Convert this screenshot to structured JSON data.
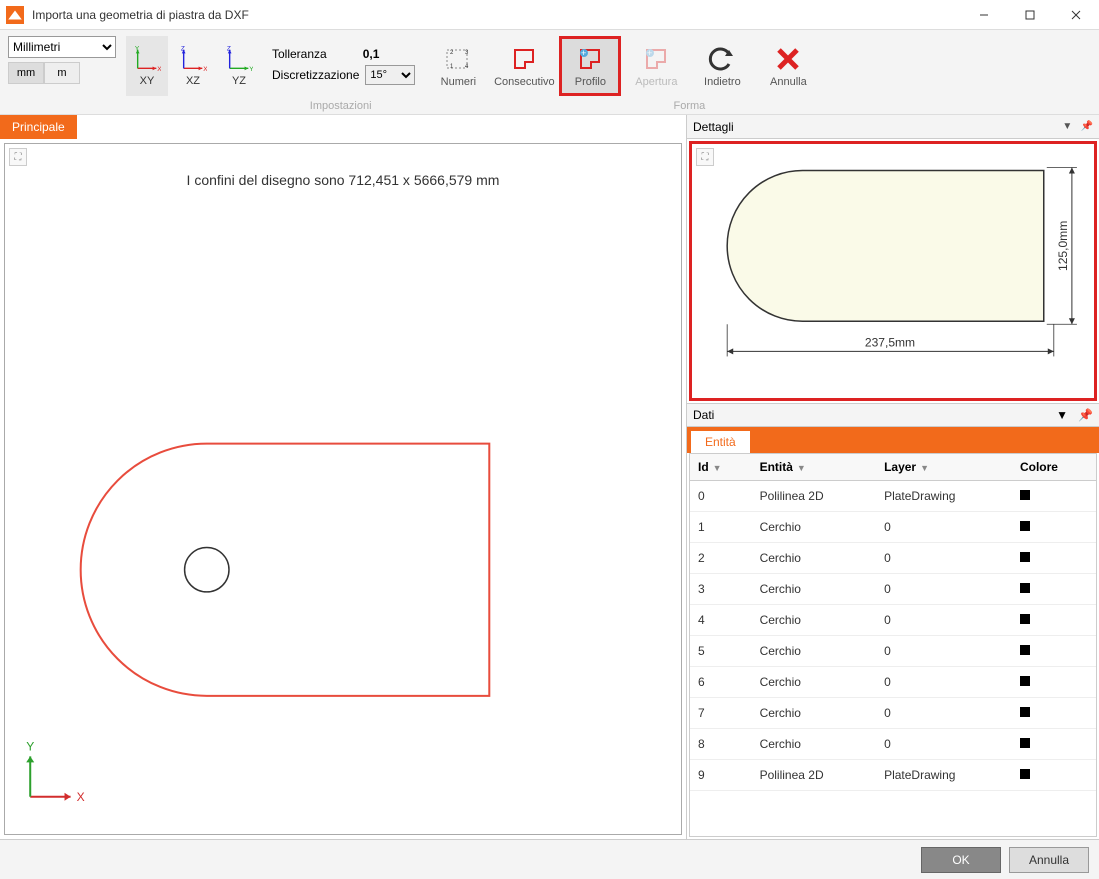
{
  "window": {
    "title": "Importa una geometria di piastra da DXF"
  },
  "ribbon": {
    "units_dropdown": "Millimetri",
    "unit_mm": "mm",
    "unit_m": "m",
    "plane_xy": "XY",
    "plane_xz": "XZ",
    "plane_yz": "YZ",
    "tolerance_label": "Tolleranza",
    "tolerance_value": "0,1",
    "discretization_label": "Discretizzazione",
    "discretization_value": "15°",
    "tool_numeri": "Numeri",
    "tool_consecutivo": "Consecutivo",
    "tool_profilo": "Profilo",
    "tool_apertura": "Apertura",
    "tool_indietro": "Indietro",
    "tool_annulla": "Annulla",
    "group_impostazioni": "Impostazioni",
    "group_forma": "Forma"
  },
  "main_panel": {
    "tab_label": "Principale",
    "caption": "I confini del disegno sono  712,451 x  5666,579 mm",
    "shape": {
      "stroke_color": "#e84c3d",
      "stroke_width": 2,
      "circle_stroke": "#333333"
    },
    "axis": {
      "x_color": "#d22d2d",
      "y_color": "#2da02d",
      "x_label": "X",
      "y_label": "Y"
    }
  },
  "detail_panel": {
    "header": "Dettagli",
    "width_label": "237,5mm",
    "height_label": "125,0mm",
    "fill_color": "#fafae8",
    "stroke_color": "#333333"
  },
  "data_panel": {
    "header": "Dati",
    "tab_label": "Entità",
    "columns": {
      "id": "Id",
      "entita": "Entità",
      "layer": "Layer",
      "colore": "Colore"
    },
    "rows": [
      {
        "id": "0",
        "entita": "Polilinea 2D",
        "layer": "PlateDrawing",
        "color": "#000000"
      },
      {
        "id": "1",
        "entita": "Cerchio",
        "layer": "0",
        "color": "#000000"
      },
      {
        "id": "2",
        "entita": "Cerchio",
        "layer": "0",
        "color": "#000000"
      },
      {
        "id": "3",
        "entita": "Cerchio",
        "layer": "0",
        "color": "#000000"
      },
      {
        "id": "4",
        "entita": "Cerchio",
        "layer": "0",
        "color": "#000000"
      },
      {
        "id": "5",
        "entita": "Cerchio",
        "layer": "0",
        "color": "#000000"
      },
      {
        "id": "6",
        "entita": "Cerchio",
        "layer": "0",
        "color": "#000000"
      },
      {
        "id": "7",
        "entita": "Cerchio",
        "layer": "0",
        "color": "#000000"
      },
      {
        "id": "8",
        "entita": "Cerchio",
        "layer": "0",
        "color": "#000000"
      },
      {
        "id": "9",
        "entita": "Polilinea 2D",
        "layer": "PlateDrawing",
        "color": "#000000"
      }
    ]
  },
  "footer": {
    "ok": "OK",
    "cancel": "Annulla"
  }
}
